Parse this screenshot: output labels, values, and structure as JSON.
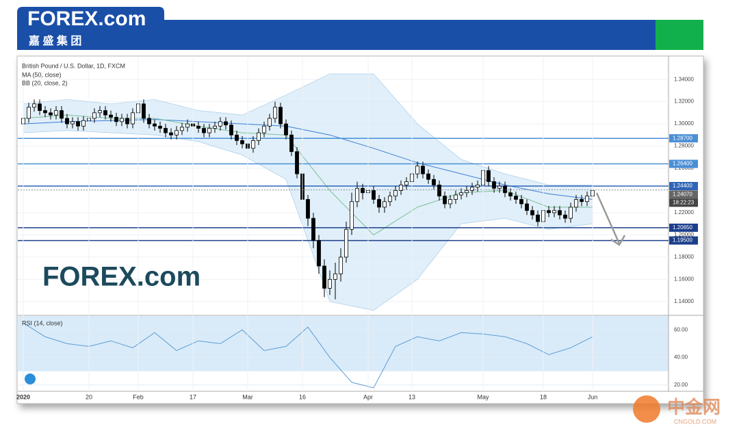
{
  "header": {
    "brand": "FOREX.com",
    "brand_cn": "嘉 盛 集 团"
  },
  "watermark": "FOREX.com",
  "corner_brand": {
    "name": "中金网",
    "site": "CNGOLD.COM"
  },
  "chart_data": {
    "type": "candlestick",
    "title": "British Pound / U.S. Dollar, 1D, FXCM",
    "indicators": [
      "MA (50, close)",
      "BB (20, close, 2)"
    ],
    "up_color": "#ffffff",
    "down_color": "#000000",
    "candles": [
      [
        1.3,
        1.309,
        1.296,
        1.305
      ],
      [
        1.305,
        1.319,
        1.301,
        1.315
      ],
      [
        1.315,
        1.322,
        1.311,
        1.318
      ],
      [
        1.318,
        1.322,
        1.308,
        1.312
      ],
      [
        1.312,
        1.316,
        1.306,
        1.31
      ],
      [
        1.31,
        1.314,
        1.304,
        1.308
      ],
      [
        1.308,
        1.316,
        1.304,
        1.312
      ],
      [
        1.312,
        1.316,
        1.301,
        1.305
      ],
      [
        1.305,
        1.309,
        1.296,
        1.3
      ],
      [
        1.3,
        1.306,
        1.296,
        1.302
      ],
      [
        1.302,
        1.306,
        1.294,
        1.298
      ],
      [
        1.298,
        1.307,
        1.294,
        1.303
      ],
      [
        1.303,
        1.309,
        1.299,
        1.305
      ],
      [
        1.305,
        1.314,
        1.301,
        1.31
      ],
      [
        1.31,
        1.316,
        1.306,
        1.312
      ],
      [
        1.312,
        1.316,
        1.304,
        1.308
      ],
      [
        1.308,
        1.312,
        1.302,
        1.306
      ],
      [
        1.306,
        1.31,
        1.298,
        1.302
      ],
      [
        1.302,
        1.309,
        1.298,
        1.305
      ],
      [
        1.305,
        1.309,
        1.296,
        1.3
      ],
      [
        1.3,
        1.314,
        1.296,
        1.31
      ],
      [
        1.31,
        1.322,
        1.306,
        1.318
      ],
      [
        1.318,
        1.322,
        1.301,
        1.305
      ],
      [
        1.305,
        1.309,
        1.296,
        1.3
      ],
      [
        1.3,
        1.304,
        1.294,
        1.298
      ],
      [
        1.298,
        1.302,
        1.292,
        1.296
      ],
      [
        1.296,
        1.3,
        1.288,
        1.292
      ],
      [
        1.292,
        1.296,
        1.286,
        1.29
      ],
      [
        1.29,
        1.298,
        1.286,
        1.294
      ],
      [
        1.294,
        1.301,
        1.29,
        1.297
      ],
      [
        1.297,
        1.304,
        1.293,
        1.3
      ],
      [
        1.3,
        1.304,
        1.294,
        1.298
      ],
      [
        1.298,
        1.302,
        1.292,
        1.296
      ],
      [
        1.296,
        1.3,
        1.288,
        1.292
      ],
      [
        1.292,
        1.3,
        1.288,
        1.296
      ],
      [
        1.296,
        1.302,
        1.292,
        1.298
      ],
      [
        1.298,
        1.306,
        1.294,
        1.302
      ],
      [
        1.302,
        1.306,
        1.295,
        1.299
      ],
      [
        1.299,
        1.303,
        1.286,
        1.29
      ],
      [
        1.29,
        1.294,
        1.281,
        1.285
      ],
      [
        1.285,
        1.289,
        1.278,
        1.282
      ],
      [
        1.282,
        1.286,
        1.274,
        1.278
      ],
      [
        1.278,
        1.289,
        1.274,
        1.285
      ],
      [
        1.285,
        1.296,
        1.281,
        1.292
      ],
      [
        1.292,
        1.302,
        1.288,
        1.298
      ],
      [
        1.298,
        1.309,
        1.294,
        1.305
      ],
      [
        1.305,
        1.32,
        1.301,
        1.315
      ],
      [
        1.315,
        1.319,
        1.296,
        1.3
      ],
      [
        1.3,
        1.304,
        1.286,
        1.29
      ],
      [
        1.29,
        1.294,
        1.271,
        1.275
      ],
      [
        1.275,
        1.279,
        1.251,
        1.255
      ],
      [
        1.255,
        1.259,
        1.228,
        1.232
      ],
      [
        1.232,
        1.236,
        1.208,
        1.215
      ],
      [
        1.215,
        1.22,
        1.188,
        1.195
      ],
      [
        1.195,
        1.2,
        1.165,
        1.172
      ],
      [
        1.172,
        1.178,
        1.144,
        1.152
      ],
      [
        1.152,
        1.168,
        1.146,
        1.16
      ],
      [
        1.16,
        1.175,
        1.142,
        1.165
      ],
      [
        1.165,
        1.188,
        1.158,
        1.18
      ],
      [
        1.18,
        1.212,
        1.175,
        1.205
      ],
      [
        1.205,
        1.238,
        1.2,
        1.23
      ],
      [
        1.23,
        1.248,
        1.225,
        1.242
      ],
      [
        1.242,
        1.246,
        1.232,
        1.238
      ],
      [
        1.238,
        1.246,
        1.234,
        1.24
      ],
      [
        1.24,
        1.244,
        1.228,
        1.232
      ],
      [
        1.232,
        1.236,
        1.22,
        1.225
      ],
      [
        1.225,
        1.234,
        1.22,
        1.23
      ],
      [
        1.23,
        1.239,
        1.226,
        1.235
      ],
      [
        1.235,
        1.244,
        1.231,
        1.24
      ],
      [
        1.24,
        1.249,
        1.236,
        1.245
      ],
      [
        1.245,
        1.252,
        1.241,
        1.248
      ],
      [
        1.248,
        1.259,
        1.244,
        1.255
      ],
      [
        1.255,
        1.266,
        1.251,
        1.262
      ],
      [
        1.262,
        1.266,
        1.251,
        1.255
      ],
      [
        1.255,
        1.259,
        1.246,
        1.25
      ],
      [
        1.25,
        1.254,
        1.241,
        1.245
      ],
      [
        1.245,
        1.249,
        1.231,
        1.235
      ],
      [
        1.235,
        1.239,
        1.224,
        1.228
      ],
      [
        1.228,
        1.236,
        1.224,
        1.232
      ],
      [
        1.232,
        1.24,
        1.228,
        1.236
      ],
      [
        1.236,
        1.242,
        1.232,
        1.238
      ],
      [
        1.238,
        1.244,
        1.234,
        1.24
      ],
      [
        1.24,
        1.247,
        1.236,
        1.243
      ],
      [
        1.243,
        1.249,
        1.239,
        1.245
      ],
      [
        1.245,
        1.264,
        1.241,
        1.258
      ],
      [
        1.258,
        1.262,
        1.244,
        1.248
      ],
      [
        1.248,
        1.252,
        1.238,
        1.242
      ],
      [
        1.242,
        1.248,
        1.238,
        1.244
      ],
      [
        1.244,
        1.248,
        1.234,
        1.238
      ],
      [
        1.238,
        1.242,
        1.231,
        1.235
      ],
      [
        1.235,
        1.239,
        1.228,
        1.232
      ],
      [
        1.232,
        1.236,
        1.224,
        1.228
      ],
      [
        1.228,
        1.232,
        1.218,
        1.222
      ],
      [
        1.222,
        1.226,
        1.214,
        1.218
      ],
      [
        1.218,
        1.222,
        1.208,
        1.212
      ],
      [
        1.212,
        1.226,
        1.208,
        1.222
      ],
      [
        1.222,
        1.226,
        1.216,
        1.22
      ],
      [
        1.22,
        1.226,
        1.216,
        1.222
      ],
      [
        1.222,
        1.226,
        1.214,
        1.218
      ],
      [
        1.218,
        1.222,
        1.211,
        1.215
      ],
      [
        1.215,
        1.229,
        1.211,
        1.225
      ],
      [
        1.225,
        1.236,
        1.221,
        1.232
      ],
      [
        1.232,
        1.236,
        1.226,
        1.23
      ],
      [
        1.23,
        1.239,
        1.226,
        1.235
      ],
      [
        1.235,
        1.244,
        1.231,
        1.24
      ]
    ],
    "line_x": [
      0,
      8,
      16,
      24,
      32,
      40,
      48,
      56,
      64,
      72,
      80,
      88,
      96,
      104
    ],
    "series": [
      {
        "name": "MA",
        "color": "#3b7dd8",
        "values": [
          1.3,
          1.302,
          1.303,
          1.304,
          1.302,
          1.3,
          1.298,
          1.29,
          1.278,
          1.265,
          1.255,
          1.245,
          1.237,
          1.232
        ]
      },
      {
        "name": "BB basis",
        "color": "#7dbf98",
        "values": [
          1.305,
          1.308,
          1.305,
          1.305,
          1.298,
          1.292,
          1.29,
          1.24,
          1.2,
          1.225,
          1.238,
          1.24,
          1.225,
          1.225
        ]
      }
    ],
    "band": {
      "color": "#d6e9f7",
      "upper": [
        1.318,
        1.322,
        1.318,
        1.322,
        1.312,
        1.308,
        1.326,
        1.345,
        1.345,
        1.3,
        1.268,
        1.255,
        1.245,
        1.245
      ],
      "lower": [
        1.292,
        1.294,
        1.292,
        1.29,
        1.284,
        1.272,
        1.25,
        1.14,
        1.132,
        1.16,
        1.21,
        1.215,
        1.205,
        1.21
      ]
    },
    "ylim": [
      1.1276,
      1.3598
    ],
    "yticks": [
      {
        "value": 1.14,
        "label": "1.14000"
      },
      {
        "value": 1.16,
        "label": "1.16000"
      },
      {
        "value": 1.18,
        "label": "1.18000"
      },
      {
        "value": 1.2,
        "label": "1.20000"
      },
      {
        "value": 1.22,
        "label": "1.22000"
      },
      {
        "value": 1.24,
        "label": "1.24000"
      },
      {
        "value": 1.26,
        "label": "1.26000"
      },
      {
        "value": 1.28,
        "label": "1.28000"
      },
      {
        "value": 1.3,
        "label": "1.30000"
      },
      {
        "value": 1.32,
        "label": "1.32000"
      },
      {
        "value": 1.34,
        "label": "1.34000"
      }
    ],
    "levels": [
      {
        "value": 1.287,
        "label": "1.28700",
        "color": "#4a8fd6"
      },
      {
        "value": 1.264,
        "label": "1.26400",
        "color": "#4a8fd6"
      },
      {
        "value": 1.244,
        "label": "1.24400",
        "color": "#2f64b8"
      },
      {
        "value": 1.2065,
        "label": "1.20650",
        "color": "#1c3f8c"
      },
      {
        "value": 1.195,
        "label": "1.19500",
        "color": "#1c3f8c"
      }
    ],
    "last_price": {
      "value": 1.2407,
      "label": "1.24070",
      "countdown": "18:22:23"
    },
    "xlabels": [
      {
        "index": 0,
        "label": "2020"
      },
      {
        "index": 12,
        "label": "20"
      },
      {
        "index": 21,
        "label": "Feb"
      },
      {
        "index": 31,
        "label": "17"
      },
      {
        "index": 41,
        "label": "Mar"
      },
      {
        "index": 51,
        "label": "16"
      },
      {
        "index": 63,
        "label": "Apr"
      },
      {
        "index": 71,
        "label": "13"
      },
      {
        "index": 84,
        "label": "May"
      },
      {
        "index": 95,
        "label": "18"
      },
      {
        "index": 104,
        "label": "Jun"
      }
    ],
    "rsi": {
      "name": "RSI (14, close)",
      "color": "#5b9bd5",
      "x": [
        0,
        4,
        8,
        12,
        16,
        20,
        24,
        28,
        32,
        36,
        40,
        44,
        48,
        52,
        56,
        60,
        64,
        68,
        72,
        76,
        80,
        84,
        88,
        92,
        96,
        100,
        104
      ],
      "values": [
        65,
        55,
        50,
        48,
        52,
        47,
        58,
        45,
        52,
        50,
        60,
        45,
        48,
        62,
        40,
        22,
        18,
        48,
        55,
        52,
        58,
        57,
        55,
        50,
        42,
        47,
        55
      ],
      "band": [
        30,
        70
      ],
      "ylim": [
        16,
        70
      ],
      "yticks": [
        {
          "value": 20,
          "label": "20.00"
        },
        {
          "value": 40,
          "label": "40.00"
        },
        {
          "value": 60,
          "label": "60.00"
        }
      ]
    }
  }
}
